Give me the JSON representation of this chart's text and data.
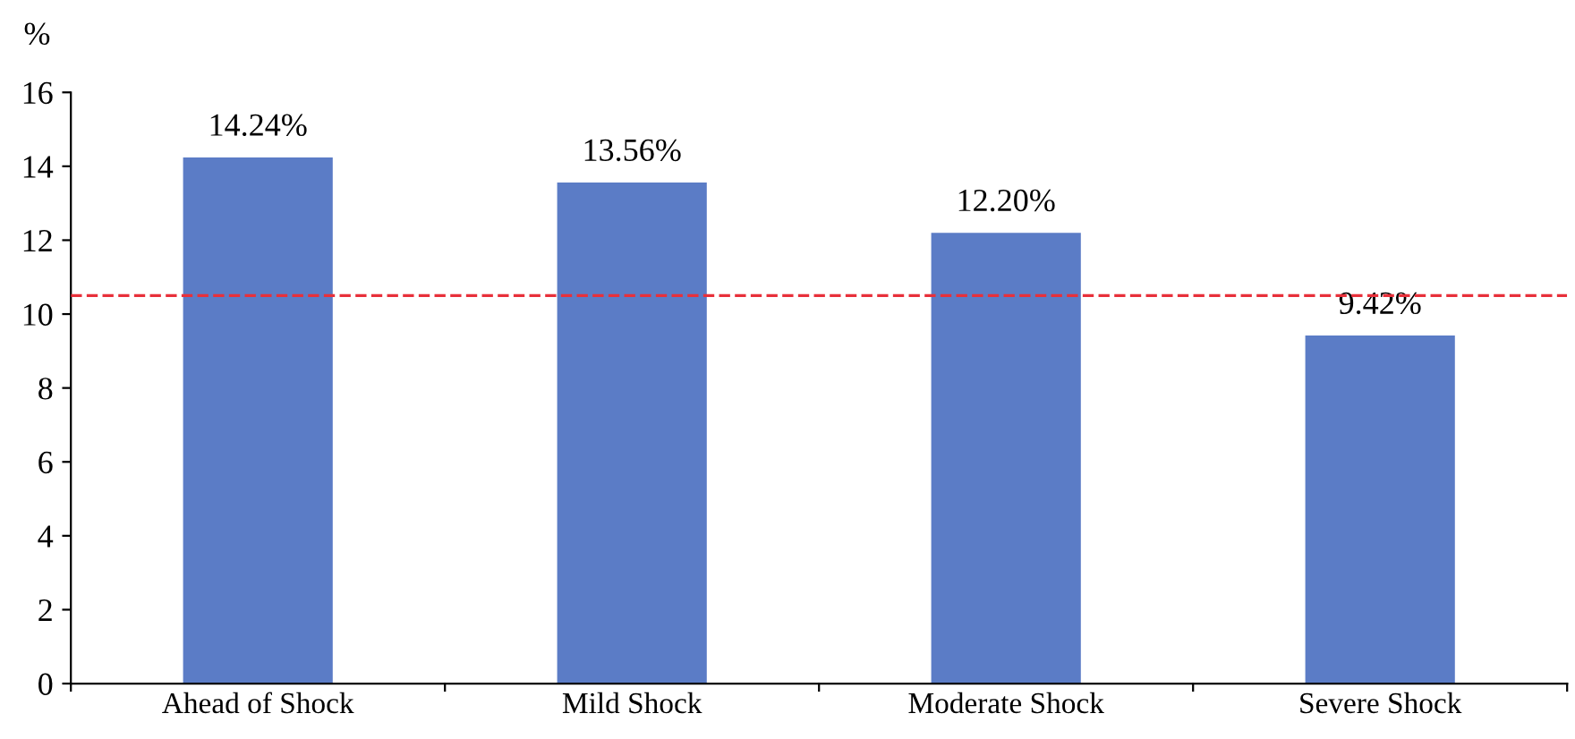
{
  "chart_data": {
    "type": "bar",
    "ylabel": "%",
    "categories": [
      "Ahead of Shock",
      "Mild Shock",
      "Moderate Shock",
      "Severe Shock"
    ],
    "values": [
      14.24,
      13.56,
      12.2,
      9.42
    ],
    "value_labels": [
      "14.24%",
      "13.56%",
      "12.20%",
      "9.42%"
    ],
    "color": "#5b7cc6",
    "ylim": [
      0,
      16
    ],
    "yticks": [
      0,
      2,
      4,
      6,
      8,
      10,
      12,
      14,
      16
    ],
    "ref_lines": [
      {
        "axis": "y",
        "value": 10.5,
        "color": "#e8303a",
        "line_style": "dashed"
      }
    ],
    "grid": false,
    "legend": false
  }
}
